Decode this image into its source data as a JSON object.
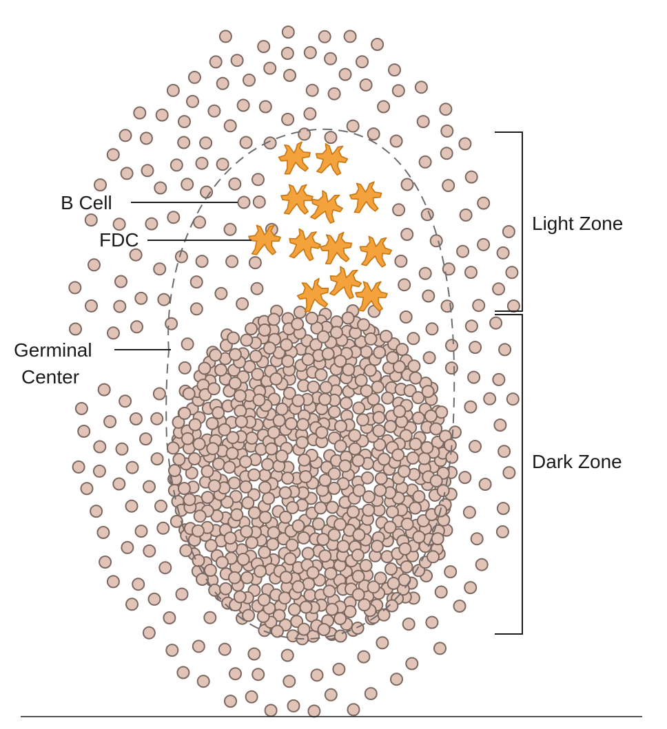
{
  "labels": {
    "b_cell": "B Cell",
    "fdc": "FDC",
    "germinal_line1": "Germinal",
    "germinal_line2": "Center",
    "light_zone": "Light Zone",
    "dark_zone": "Dark Zone"
  },
  "colors": {
    "b_cell_fill": "#e2c3b7",
    "b_cell_stroke": "#7a675f",
    "fdc_fill": "#f4a23c",
    "fdc_stroke": "#c97814",
    "germinal_outline": "#6b6b6b",
    "bracket": "#1a1a1a"
  }
}
